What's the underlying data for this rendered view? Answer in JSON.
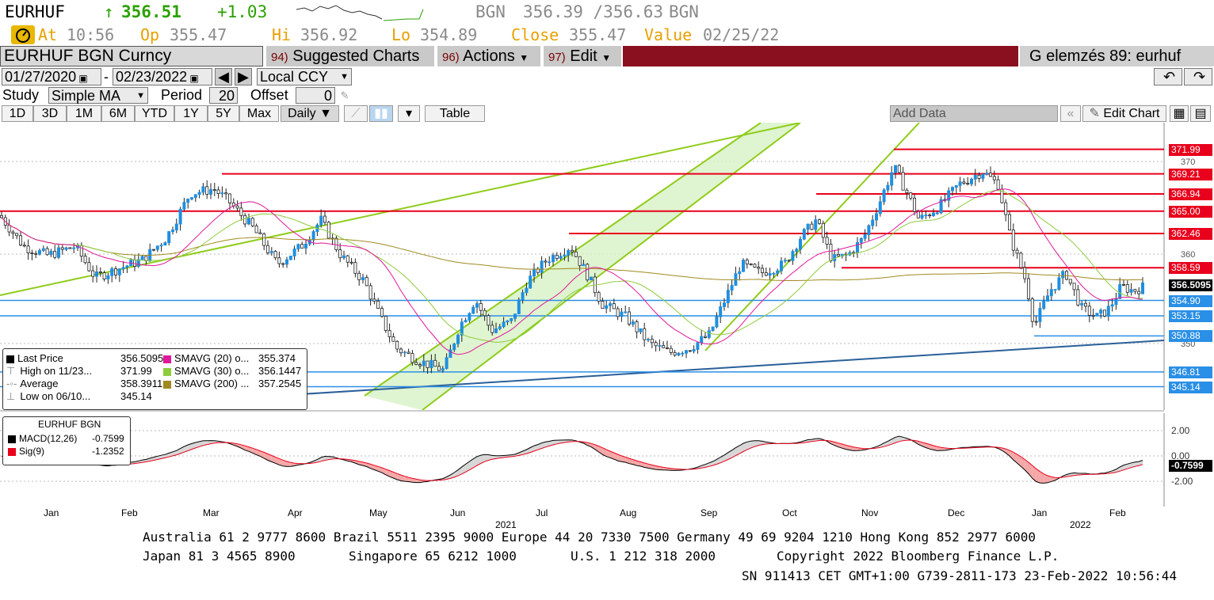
{
  "header": {
    "ticker": "EURHUF",
    "arrow": "↑",
    "last": "356.51",
    "change": "+1.03",
    "source": "BGN",
    "bid_ask": "356.39 /356.63",
    "source2": "BGN",
    "at_label": "At",
    "at_value": "10:56",
    "op_label": "Op",
    "op_value": "355.47",
    "hi_label": "Hi",
    "hi_value": "356.92",
    "lo_label": "Lo",
    "lo_value": "354.89",
    "close_label": "Close",
    "close_value": "355.47",
    "value_label": "Value",
    "value_value": "02/25/22"
  },
  "toolbar": {
    "security": "EURHUF BGN Curncy",
    "suggested_num": "94)",
    "suggested": "Suggested Charts",
    "actions_num": "96)",
    "actions": "Actions",
    "edit_num": "97)",
    "edit": "Edit",
    "function_title": "G elemzés 89: eurhuf",
    "date_from": "01/27/2020",
    "date_to": "02/23/2022",
    "date_sep": "-",
    "currency": "Local CCY",
    "study_label": "Study",
    "study_value": "Simple MA",
    "period_label": "Period",
    "period_value": "20",
    "offset_label": "Offset",
    "offset_value": "0",
    "tabs": [
      "1D",
      "3D",
      "1M",
      "6M",
      "YTD",
      "1Y",
      "5Y",
      "Max"
    ],
    "interval": "Daily ▼",
    "table_label": "Table",
    "add_data": "Add Data",
    "edit_chart": "Edit Chart"
  },
  "legend": {
    "last_price_label": "Last Price",
    "last_price_value": "356.5095",
    "high_label": "High on 11/23...",
    "high_value": "371.99",
    "average_label": "Average",
    "average_value": "358.3911",
    "low_label": "Low on 06/10...",
    "low_value": "345.14",
    "sma20_label": "SMAVG (20)  o...",
    "sma20_value": "355.374",
    "sma30_label": "SMAVG (30)  o...",
    "sma30_value": "356.1447",
    "sma200_label": "SMAVG (200)  ...",
    "sma200_value": "357.2545"
  },
  "macd_legend": {
    "title": "EURHUF BGN",
    "macd_label": "MACD(12,26)",
    "macd_value": "-0.7599",
    "sig_label": "Sig(9)",
    "sig_value": "-1.2352"
  },
  "colors": {
    "candle_up": "#1f8fe0",
    "sma20": "#e0189a",
    "sma30": "#8fcc3c",
    "sma200": "#a08a20",
    "red_level": "#e8001c",
    "blue_level": "#2a8fe6",
    "channel_fill": "#d9f2c8",
    "channel_line": "#8fcc1a",
    "trend_blue": "#2a5f9a"
  },
  "chart_data": {
    "type": "candlestick",
    "x_axis_months": [
      "Jan",
      "Feb",
      "Mar",
      "Apr",
      "May",
      "Jun",
      "Jul",
      "Aug",
      "Sep",
      "Oct",
      "Nov",
      "Dec",
      "Jan",
      "Feb"
    ],
    "x_axis_years": [
      "2021",
      "2022"
    ],
    "y_ticks": [
      "370",
      "360",
      "350"
    ],
    "price_levels_red": [
      "371.99",
      "369.21",
      "366.94",
      "365.00",
      "362.46",
      "358.59"
    ],
    "price_levels_blue": [
      "354.90",
      "353.15",
      "350.88",
      "346.81",
      "345.14"
    ],
    "last_price_label": "356.5095",
    "ylim": [
      342.5,
      375
    ],
    "macd": {
      "y_ticks": [
        "2.00",
        "0.00",
        "-2.00"
      ],
      "last_label": "-0.7599",
      "ylim": [
        -3.5,
        3.0
      ]
    }
  },
  "footer": {
    "line1": "Australia 61 2 9777 8600 Brazil 5511 2395 9000 Europe 44 20 7330 7500 Germany 49 69 9204 1210 Hong Kong 852 2977 6000",
    "line2a": "Japan 81 3 4565 8900",
    "line2b": "Singapore 65 6212 1000",
    "line2c": "U.S. 1 212 318 2000",
    "line2d": "Copyright 2022 Bloomberg Finance L.P.",
    "line3": "SN 911413 CET  GMT+1:00 G739-2811-173 23-Feb-2022 10:56:44"
  }
}
